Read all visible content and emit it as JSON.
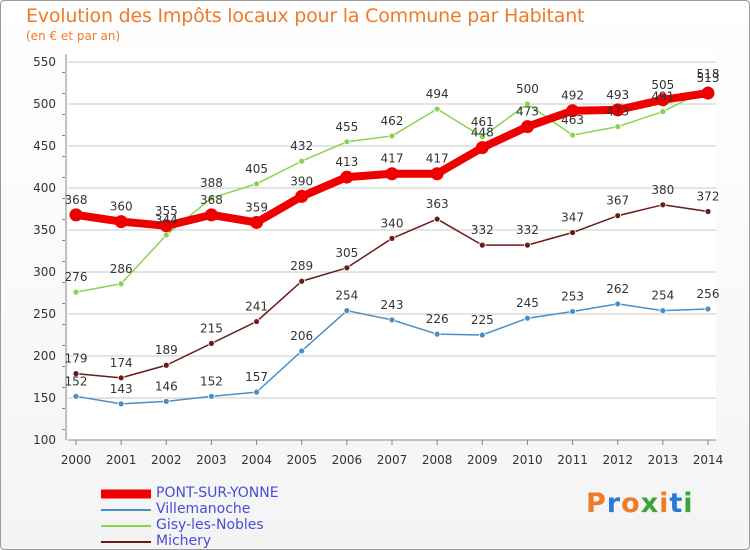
{
  "header": {
    "title": "Evolution des Impôts locaux pour la Commune par Habitant",
    "subtitle": "(en € et par an)"
  },
  "logo": {
    "text": "Proxiti",
    "colors": [
      "#f07a25",
      "#2b7bd6",
      "#f07a25",
      "#3aa33a",
      "#f07a25",
      "#2b7bd6",
      "#3aa33a"
    ]
  },
  "chart_data": {
    "type": "line",
    "x": [
      "2000",
      "2001",
      "2002",
      "2003",
      "2004",
      "2005",
      "2006",
      "2007",
      "2008",
      "2009",
      "2010",
      "2011",
      "2012",
      "2013",
      "2014"
    ],
    "ylim": [
      100,
      550
    ],
    "yticks": [
      100,
      150,
      200,
      250,
      300,
      350,
      400,
      450,
      500,
      550
    ],
    "grid": true,
    "legend_position": "bottom-left",
    "series": [
      {
        "name": "Villemanoche",
        "color": "#4a90c8",
        "values": [
          152,
          143,
          146,
          152,
          157,
          206,
          254,
          243,
          226,
          225,
          245,
          253,
          262,
          254,
          256
        ]
      },
      {
        "name": "Michery",
        "color": "#6b1a1a",
        "values": [
          179,
          174,
          189,
          215,
          241,
          289,
          305,
          340,
          363,
          332,
          332,
          347,
          367,
          380,
          372
        ]
      },
      {
        "name": "Gisy-les-Nobles",
        "color": "#88d44c",
        "values": [
          276,
          286,
          344,
          388,
          405,
          432,
          455,
          462,
          494,
          461,
          500,
          463,
          473,
          491,
          518
        ]
      },
      {
        "name": "PONT-SUR-YONNE",
        "color": "#ee0000",
        "values": [
          368,
          360,
          355,
          368,
          359,
          390,
          413,
          417,
          417,
          448,
          473,
          492,
          493,
          505,
          513
        ]
      }
    ],
    "data_labels": {
      "Villemanoche": [
        "152",
        "143",
        "146",
        "152",
        "157",
        "206",
        "254",
        "243",
        "226",
        "225",
        "245",
        "253",
        "262",
        "254",
        "256"
      ],
      "Michery": [
        "179",
        "174",
        "189",
        "215",
        "241",
        "289",
        "305",
        "340",
        "363",
        "332",
        "332",
        "347",
        "367",
        "380",
        "372"
      ],
      "Gisy-les-Nobles": [
        "276",
        "286",
        "344",
        "388",
        "405",
        "432",
        "455",
        "462",
        "494",
        "461",
        "500",
        "463",
        "473",
        "491",
        "518"
      ],
      "PONT-SUR-YONNE": [
        "368",
        "360",
        "355",
        "368",
        "359",
        "390",
        "413",
        "417",
        "417",
        "448",
        "473",
        "492",
        "493",
        "505",
        "513"
      ]
    }
  },
  "legend": {
    "items": [
      {
        "label": "PONT-SUR-YONNE",
        "color": "#ee0000"
      },
      {
        "label": "Villemanoche",
        "color": "#4a90c8"
      },
      {
        "label": "Gisy-les-Nobles",
        "color": "#88d44c"
      },
      {
        "label": "Michery",
        "color": "#6b1a1a"
      }
    ]
  }
}
